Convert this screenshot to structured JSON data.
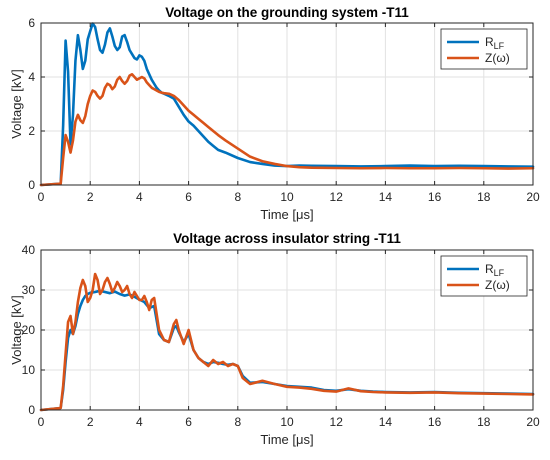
{
  "chart_data": [
    {
      "type": "line",
      "title": "Voltage on the grounding system -T11",
      "xlabel": "Time [μs]",
      "ylabel": "Voltage [kV]",
      "xlim": [
        0,
        20
      ],
      "ylim": [
        0,
        6
      ],
      "xticks": [
        0,
        2,
        4,
        6,
        8,
        10,
        12,
        14,
        16,
        18,
        20
      ],
      "yticks": [
        0,
        2,
        4,
        6
      ],
      "grid": true,
      "legend_position": "top-right",
      "legend": {
        "entries": [
          {
            "name": "R",
            "sub": "LF"
          },
          {
            "name": "Z(ω)",
            "sub": ""
          }
        ]
      },
      "series": [
        {
          "name": "R_LF",
          "color": "#0072BD",
          "x": [
            0,
            0.8,
            0.9,
            1.0,
            1.1,
            1.2,
            1.3,
            1.4,
            1.5,
            1.6,
            1.7,
            1.8,
            1.9,
            2.0,
            2.1,
            2.2,
            2.3,
            2.4,
            2.5,
            2.6,
            2.7,
            2.8,
            2.9,
            3.0,
            3.1,
            3.2,
            3.3,
            3.4,
            3.5,
            3.6,
            3.7,
            3.8,
            3.9,
            4.0,
            4.1,
            4.2,
            4.3,
            4.4,
            4.5,
            4.6,
            4.7,
            4.8,
            4.9,
            5.0,
            5.2,
            5.4,
            5.6,
            5.8,
            6.0,
            6.2,
            6.4,
            6.6,
            6.8,
            7.0,
            7.2,
            7.5,
            8.0,
            8.5,
            9.0,
            9.5,
            10.0,
            10.5,
            11,
            12,
            13,
            14,
            15,
            16,
            17,
            18,
            19,
            20
          ],
          "y": [
            0,
            0.05,
            2.2,
            5.35,
            4.2,
            1.5,
            2.6,
            4.6,
            5.55,
            5.0,
            4.3,
            4.6,
            5.4,
            5.7,
            5.98,
            5.85,
            5.4,
            5.0,
            4.9,
            5.2,
            5.65,
            5.8,
            5.5,
            5.15,
            5.0,
            5.1,
            5.5,
            5.55,
            5.3,
            5.0,
            4.85,
            4.7,
            4.65,
            4.8,
            4.75,
            4.6,
            4.3,
            4.1,
            3.9,
            3.75,
            3.6,
            3.5,
            3.42,
            3.38,
            3.3,
            3.2,
            2.9,
            2.6,
            2.35,
            2.2,
            2.0,
            1.8,
            1.6,
            1.45,
            1.3,
            1.2,
            1.0,
            0.85,
            0.78,
            0.72,
            0.7,
            0.72,
            0.71,
            0.7,
            0.69,
            0.7,
            0.72,
            0.7,
            0.71,
            0.7,
            0.69,
            0.68
          ]
        },
        {
          "name": "Z(ω)",
          "color": "#D95319",
          "x": [
            0,
            0.8,
            0.9,
            1.0,
            1.1,
            1.2,
            1.3,
            1.4,
            1.5,
            1.6,
            1.7,
            1.8,
            1.9,
            2.0,
            2.1,
            2.2,
            2.3,
            2.4,
            2.5,
            2.6,
            2.7,
            2.8,
            2.9,
            3.0,
            3.1,
            3.2,
            3.3,
            3.4,
            3.5,
            3.6,
            3.7,
            3.8,
            3.9,
            4.0,
            4.1,
            4.2,
            4.3,
            4.4,
            4.5,
            4.6,
            4.7,
            4.8,
            4.9,
            5.0,
            5.2,
            5.4,
            5.6,
            5.8,
            6.0,
            6.2,
            6.4,
            6.6,
            6.8,
            7.0,
            7.2,
            7.5,
            8.0,
            8.5,
            9.0,
            9.5,
            10.0,
            10.5,
            11,
            12,
            13,
            14,
            15,
            16,
            17,
            18,
            19,
            20
          ],
          "y": [
            0,
            0.05,
            1.0,
            1.85,
            1.6,
            1.2,
            1.65,
            2.35,
            2.6,
            2.4,
            2.3,
            2.55,
            3.0,
            3.3,
            3.5,
            3.45,
            3.3,
            3.2,
            3.3,
            3.6,
            3.75,
            3.7,
            3.55,
            3.65,
            3.9,
            4.0,
            3.85,
            3.75,
            3.85,
            4.05,
            4.1,
            4.0,
            3.9,
            3.95,
            4.0,
            3.95,
            3.8,
            3.7,
            3.6,
            3.55,
            3.5,
            3.45,
            3.42,
            3.4,
            3.38,
            3.3,
            3.15,
            2.95,
            2.75,
            2.6,
            2.45,
            2.3,
            2.15,
            2.0,
            1.85,
            1.65,
            1.35,
            1.05,
            0.88,
            0.78,
            0.7,
            0.66,
            0.64,
            0.63,
            0.62,
            0.63,
            0.62,
            0.62,
            0.63,
            0.62,
            0.61,
            0.62
          ]
        }
      ]
    },
    {
      "type": "line",
      "title": "Voltage across insulator string -T11",
      "xlabel": "Time [μs]",
      "ylabel": "Voltage [kV]",
      "xlim": [
        0,
        20
      ],
      "ylim": [
        0,
        40
      ],
      "xticks": [
        0,
        2,
        4,
        6,
        8,
        10,
        12,
        14,
        16,
        18,
        20
      ],
      "yticks": [
        0,
        10,
        20,
        30,
        40
      ],
      "grid": true,
      "legend_position": "top-right",
      "legend": {
        "entries": [
          {
            "name": "R",
            "sub": "LF"
          },
          {
            "name": "Z(ω)",
            "sub": ""
          }
        ]
      },
      "series": [
        {
          "name": "R_LF",
          "color": "#0072BD",
          "x": [
            0,
            0.8,
            0.9,
            1.0,
            1.1,
            1.2,
            1.3,
            1.4,
            1.5,
            1.6,
            1.7,
            1.8,
            1.9,
            2.0,
            2.2,
            2.4,
            2.6,
            2.8,
            3.0,
            3.2,
            3.4,
            3.6,
            3.8,
            4.0,
            4.2,
            4.4,
            4.6,
            4.8,
            5.0,
            5.2,
            5.4,
            5.5,
            5.6,
            5.8,
            6.0,
            6.2,
            6.4,
            6.6,
            6.8,
            7.0,
            7.2,
            7.4,
            7.6,
            7.8,
            8.0,
            8.2,
            8.5,
            9.0,
            9.5,
            10.0,
            10.5,
            11,
            11.5,
            12,
            12.5,
            13,
            13.5,
            14,
            15,
            16,
            17,
            18,
            19,
            20
          ],
          "y": [
            0,
            0.5,
            5,
            12,
            18,
            20,
            19,
            21,
            24,
            26,
            27.5,
            28.5,
            29,
            29.3,
            29.5,
            29.8,
            29.5,
            29.2,
            29.6,
            29.0,
            28.6,
            28.9,
            28.3,
            27.6,
            27.0,
            25.5,
            26.0,
            19,
            17.5,
            17.0,
            20.5,
            21.0,
            19.5,
            17.0,
            19.0,
            15.0,
            13.0,
            12.0,
            11.5,
            12.0,
            11.8,
            11.5,
            11.3,
            11.5,
            11.0,
            8.5,
            6.8,
            7.0,
            6.5,
            6.0,
            5.8,
            5.6,
            5.0,
            4.8,
            5.2,
            4.8,
            4.6,
            4.5,
            4.4,
            4.5,
            4.3,
            4.2,
            4.1,
            4.0
          ]
        },
        {
          "name": "Z(ω)",
          "color": "#D95319",
          "x": [
            0,
            0.8,
            0.9,
            1.0,
            1.1,
            1.2,
            1.3,
            1.4,
            1.5,
            1.6,
            1.7,
            1.8,
            1.9,
            2.0,
            2.1,
            2.2,
            2.3,
            2.4,
            2.5,
            2.6,
            2.7,
            2.8,
            2.9,
            3.0,
            3.1,
            3.2,
            3.3,
            3.4,
            3.5,
            3.6,
            3.7,
            3.8,
            3.9,
            4.0,
            4.1,
            4.2,
            4.3,
            4.4,
            4.5,
            4.6,
            4.7,
            4.8,
            5.0,
            5.2,
            5.4,
            5.5,
            5.6,
            5.8,
            6.0,
            6.2,
            6.4,
            6.6,
            6.8,
            7.0,
            7.2,
            7.4,
            7.6,
            7.8,
            8.0,
            8.2,
            8.5,
            9.0,
            9.5,
            10.0,
            10.5,
            11,
            11.5,
            12,
            12.5,
            13,
            13.5,
            14,
            15,
            16,
            17,
            18,
            19,
            20
          ],
          "y": [
            0,
            0.5,
            6,
            14,
            22,
            23.5,
            19,
            22,
            27,
            30.5,
            32.5,
            31,
            27,
            28,
            30,
            34,
            32.5,
            29,
            30,
            32,
            33,
            31.5,
            29.5,
            30.5,
            32,
            31,
            29.5,
            30,
            31,
            29,
            28,
            29.5,
            28.5,
            27.5,
            27.5,
            28.5,
            27,
            25,
            27.5,
            28,
            24,
            20,
            17.5,
            17.0,
            21.5,
            22.5,
            20.0,
            16.5,
            20.0,
            15.0,
            13.0,
            12.0,
            11.0,
            12.5,
            11.5,
            12.0,
            11.0,
            11.5,
            11.0,
            8.0,
            6.5,
            7.3,
            6.5,
            5.8,
            5.6,
            5.3,
            4.8,
            4.6,
            5.4,
            4.7,
            4.5,
            4.4,
            4.3,
            4.4,
            4.2,
            4.1,
            4.0,
            3.9
          ]
        }
      ]
    }
  ]
}
